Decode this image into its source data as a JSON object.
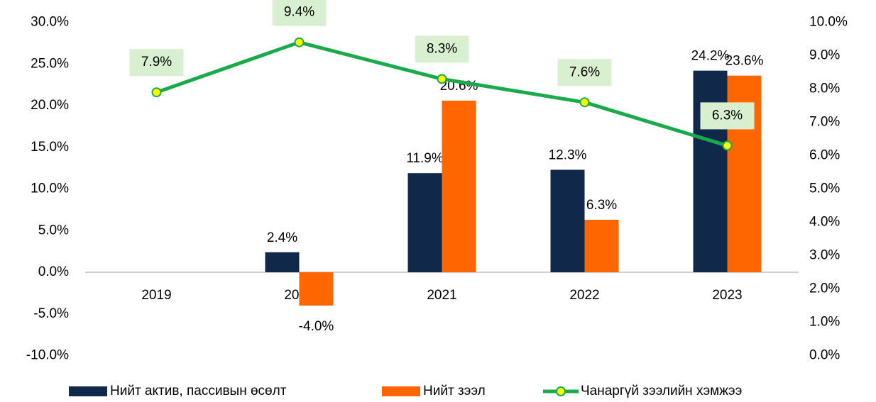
{
  "chart_data": {
    "type": "bar-line",
    "categories": [
      "2019",
      "2020",
      "2021",
      "2022",
      "2023"
    ],
    "series": [
      {
        "name": "Нийт актив, пассивын өсөлт",
        "type": "bar",
        "color": "#10294a",
        "values": [
          null,
          2.4,
          11.9,
          12.3,
          24.2
        ],
        "value_labels": [
          null,
          "2.4%",
          "11.9%",
          "12.3%",
          "24.2%"
        ]
      },
      {
        "name": "Нийт зээл",
        "type": "bar",
        "color": "#ff6600",
        "values": [
          null,
          -4.0,
          20.6,
          6.3,
          23.6
        ],
        "value_labels": [
          null,
          "-4.0%",
          "20.6%",
          "6.3%",
          "23.6%"
        ]
      },
      {
        "name": "Чанаргүй зээлийн хэмжээ",
        "type": "line",
        "axis": "y2",
        "color": "#1aaa4b",
        "marker_color": "#ffff00",
        "label_background": "#d8f0d0",
        "values": [
          7.9,
          9.4,
          8.3,
          7.6,
          6.3
        ],
        "value_labels": [
          "7.9%",
          "9.4%",
          "8.3%",
          "7.6%",
          "6.3%"
        ]
      }
    ],
    "ylim": [
      -10,
      30
    ],
    "yticks": [
      {
        "value": -10,
        "label": "-10.0%"
      },
      {
        "value": -5,
        "label": "-5.0%"
      },
      {
        "value": 0,
        "label": "0.0%"
      },
      {
        "value": 5,
        "label": "5.0%"
      },
      {
        "value": 10,
        "label": "10.0%"
      },
      {
        "value": 15,
        "label": "15.0%"
      },
      {
        "value": 20,
        "label": "20.0%"
      },
      {
        "value": 25,
        "label": "25.0%"
      },
      {
        "value": 30,
        "label": "30.0%"
      }
    ],
    "y2lim": [
      0,
      10
    ],
    "y2ticks": [
      {
        "value": 0,
        "label": "0.0%"
      },
      {
        "value": 1,
        "label": "1.0%"
      },
      {
        "value": 2,
        "label": "2.0%"
      },
      {
        "value": 3,
        "label": "3.0%"
      },
      {
        "value": 4,
        "label": "4.0%"
      },
      {
        "value": 5,
        "label": "5.0%"
      },
      {
        "value": 6,
        "label": "6.0%"
      },
      {
        "value": 7,
        "label": "7.0%"
      },
      {
        "value": 8,
        "label": "8.0%"
      },
      {
        "value": 9,
        "label": "9.0%"
      },
      {
        "value": 10,
        "label": "10.0%"
      }
    ],
    "grid": false,
    "legend": "bottom"
  }
}
